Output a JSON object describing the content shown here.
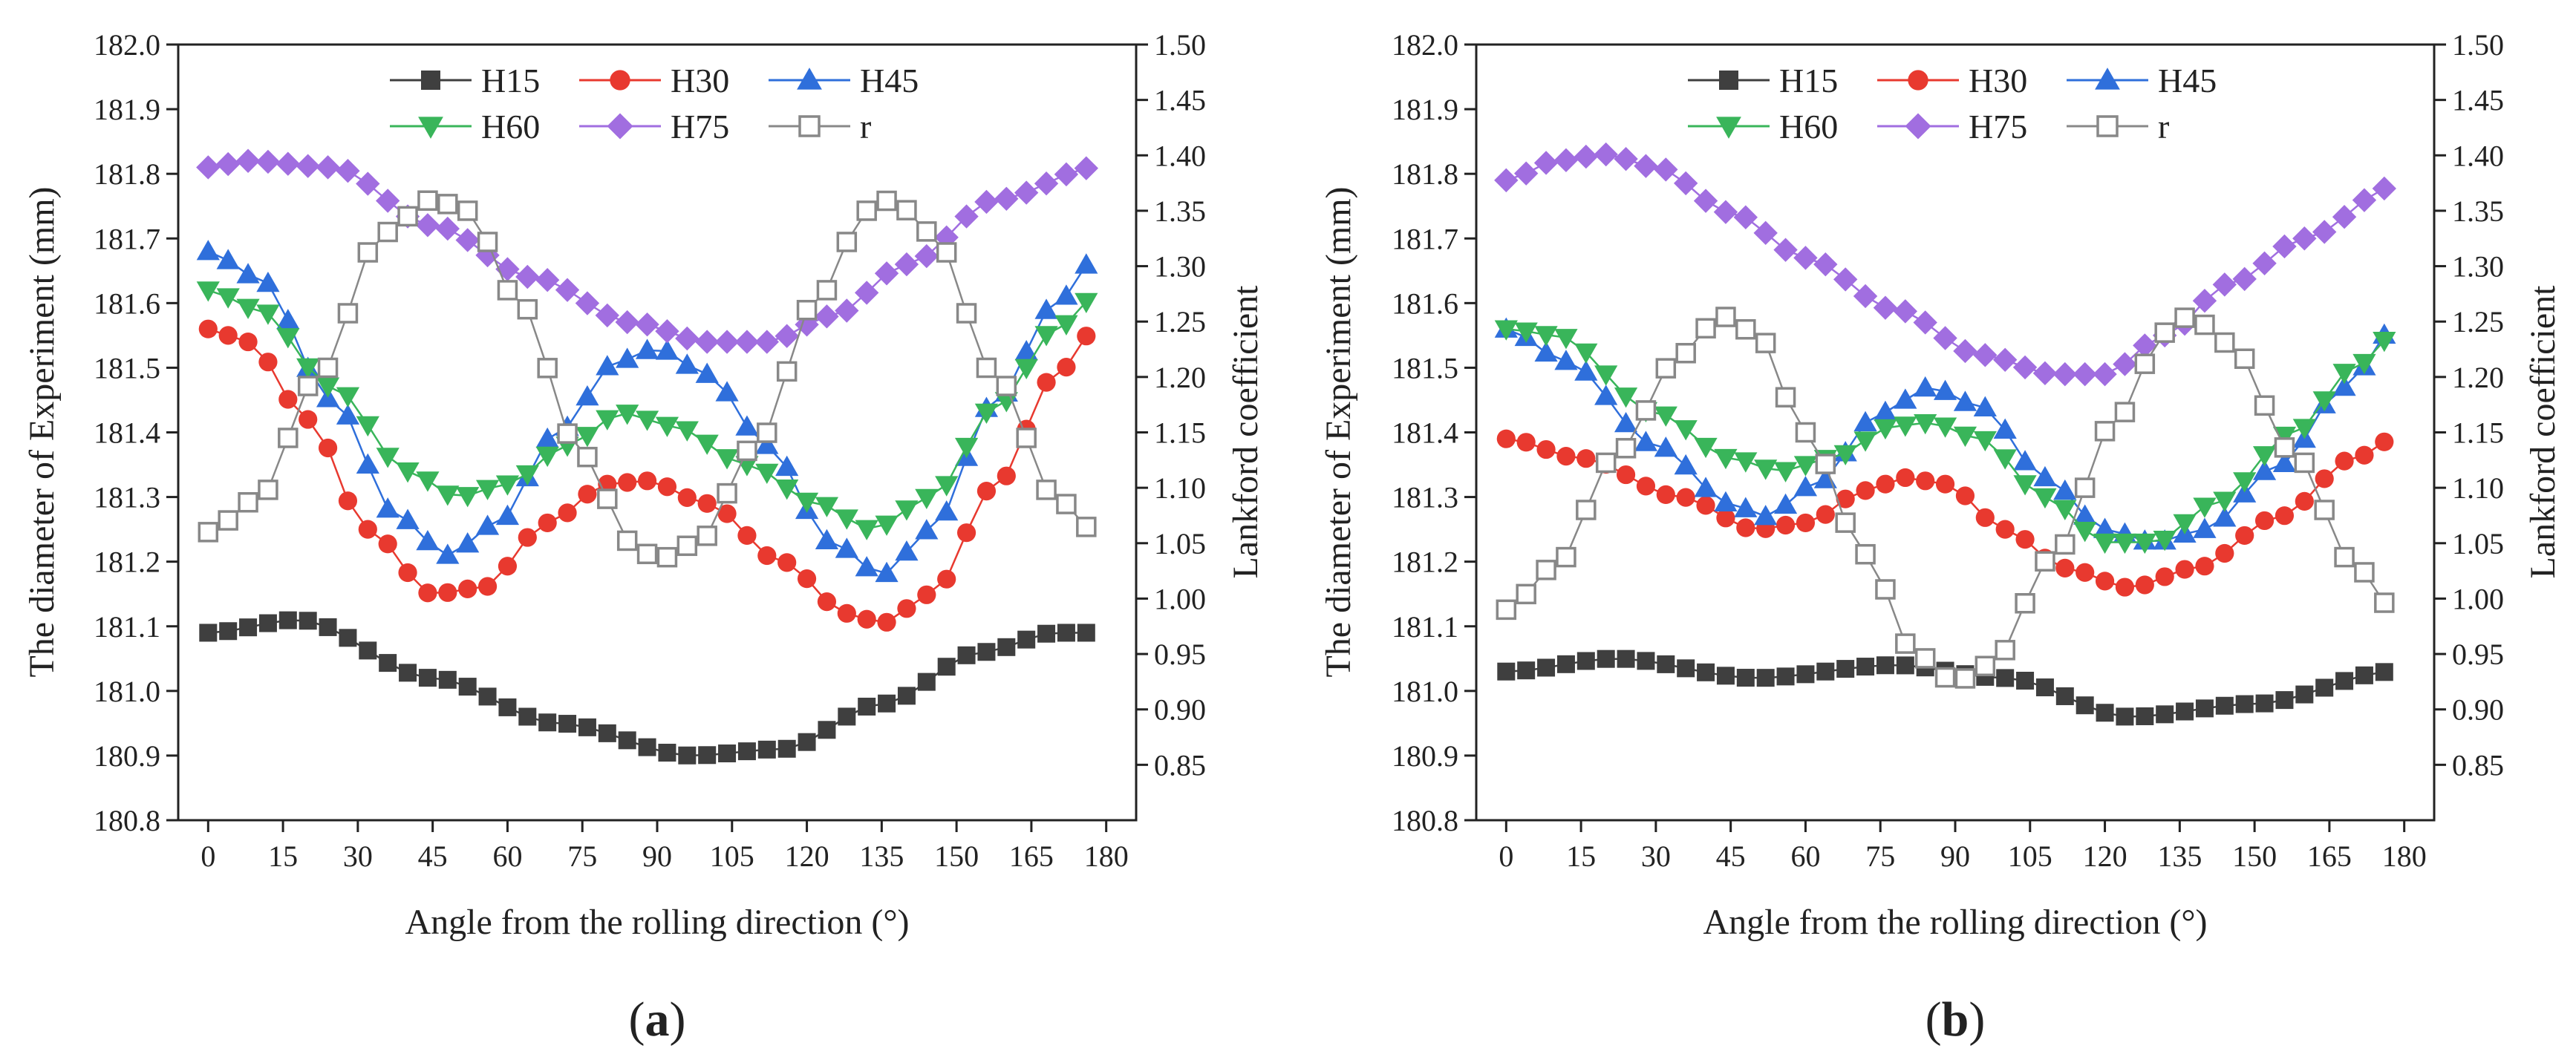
{
  "panels": [
    {
      "panel_label": "a",
      "chart_data": {
        "type": "scatter",
        "title": "",
        "xlabel": "Angle from the rolling direction (°)",
        "ylabel": "The diameter of Experiment (mm)",
        "y2label": "Lankford coefficient",
        "xlim": [
          -6,
          186
        ],
        "ylim": [
          180.8,
          182.0
        ],
        "y2lim": [
          0.8,
          1.5
        ],
        "xticks": [
          "0",
          "15",
          "30",
          "45",
          "60",
          "75",
          "90",
          "105",
          "120",
          "135",
          "150",
          "165",
          "180"
        ],
        "yticks": [
          "180.8",
          "180.9",
          "181.0",
          "181.1",
          "181.2",
          "181.3",
          "181.4",
          "181.5",
          "181.6",
          "181.7",
          "181.8",
          "181.9",
          "182.0"
        ],
        "y2ticks": [
          "0.85",
          "0.90",
          "0.95",
          "1.00",
          "1.05",
          "1.10",
          "1.15",
          "1.20",
          "1.25",
          "1.30",
          "1.35",
          "1.40",
          "1.45",
          "1.50"
        ],
        "legend_position": "top-center",
        "x_step": 4,
        "series": [
          {
            "name": "H15",
            "axis": "left",
            "marker": "square",
            "color": "#3f3f3f",
            "filled": true,
            "keypoints": [
              [
                0,
                181.09
              ],
              [
                18,
                181.11
              ],
              [
                45,
                181.02
              ],
              [
                70,
                180.95
              ],
              [
                97,
                180.9
              ],
              [
                115,
                180.91
              ],
              [
                135,
                180.98
              ],
              [
                155,
                181.06
              ],
              [
                170,
                181.09
              ],
              [
                178,
                181.09
              ]
            ]
          },
          {
            "name": "H30",
            "axis": "left",
            "marker": "circle",
            "color": "#e8392f",
            "filled": true,
            "keypoints": [
              [
                0,
                181.56
              ],
              [
                8,
                181.54
              ],
              [
                20,
                181.42
              ],
              [
                32,
                181.25
              ],
              [
                45,
                181.15
              ],
              [
                55,
                181.16
              ],
              [
                68,
                181.26
              ],
              [
                80,
                181.32
              ],
              [
                88,
                181.325
              ],
              [
                100,
                181.29
              ],
              [
                115,
                181.2
              ],
              [
                128,
                181.12
              ],
              [
                135,
                181.105
              ],
              [
                145,
                181.15
              ],
              [
                158,
                181.32
              ],
              [
                170,
                181.49
              ],
              [
                178,
                181.56
              ]
            ]
          },
          {
            "name": "H45",
            "axis": "left",
            "marker": "triangle-up",
            "color": "#2f6fdb",
            "filled": true,
            "keypoints": [
              [
                0,
                181.68
              ],
              [
                10,
                181.64
              ],
              [
                25,
                181.45
              ],
              [
                38,
                181.27
              ],
              [
                48,
                181.21
              ],
              [
                58,
                181.26
              ],
              [
                70,
                181.4
              ],
              [
                82,
                181.51
              ],
              [
                90,
                181.53
              ],
              [
                100,
                181.49
              ],
              [
                112,
                181.38
              ],
              [
                125,
                181.23
              ],
              [
                135,
                181.18
              ],
              [
                145,
                181.25
              ],
              [
                158,
                181.45
              ],
              [
                170,
                181.6
              ],
              [
                178,
                181.67
              ]
            ]
          },
          {
            "name": "H60",
            "axis": "left",
            "marker": "triangle-down",
            "color": "#39b55a",
            "filled": true,
            "keypoints": [
              [
                0,
                181.62
              ],
              [
                10,
                181.59
              ],
              [
                25,
                181.47
              ],
              [
                40,
                181.34
              ],
              [
                50,
                181.3
              ],
              [
                60,
                181.32
              ],
              [
                72,
                181.38
              ],
              [
                83,
                181.43
              ],
              [
                93,
                181.41
              ],
              [
                108,
                181.35
              ],
              [
                122,
                181.29
              ],
              [
                133,
                181.25
              ],
              [
                145,
                181.3
              ],
              [
                158,
                181.44
              ],
              [
                170,
                181.56
              ],
              [
                178,
                181.61
              ]
            ]
          },
          {
            "name": "H75",
            "axis": "left",
            "marker": "diamond",
            "color": "#a16ee0",
            "filled": true,
            "keypoints": [
              [
                0,
                181.81
              ],
              [
                8,
                181.82
              ],
              [
                25,
                181.81
              ],
              [
                45,
                181.72
              ],
              [
                65,
                181.64
              ],
              [
                85,
                181.57
              ],
              [
                100,
                181.54
              ],
              [
                112,
                181.54
              ],
              [
                125,
                181.58
              ],
              [
                140,
                181.66
              ],
              [
                158,
                181.76
              ],
              [
                178,
                181.81
              ]
            ]
          },
          {
            "name": "r",
            "axis": "right",
            "marker": "open-square",
            "color": "#888888",
            "filled": false,
            "keypoints": [
              [
                0,
                1.06
              ],
              [
                10,
                1.09
              ],
              [
                22,
                1.2
              ],
              [
                35,
                1.33
              ],
              [
                45,
                1.36
              ],
              [
                52,
                1.35
              ],
              [
                62,
                1.27
              ],
              [
                75,
                1.13
              ],
              [
                85,
                1.05
              ],
              [
                90,
                1.035
              ],
              [
                98,
                1.05
              ],
              [
                110,
                1.14
              ],
              [
                122,
                1.27
              ],
              [
                132,
                1.35
              ],
              [
                137,
                1.36
              ],
              [
                145,
                1.33
              ],
              [
                158,
                1.2
              ],
              [
                170,
                1.09
              ],
              [
                178,
                1.06
              ]
            ]
          }
        ]
      }
    },
    {
      "panel_label": "b",
      "chart_data": {
        "type": "scatter",
        "title": "",
        "xlabel": "Angle from the rolling direction (°)",
        "ylabel": "The diameter of Experiment (mm)",
        "y2label": "Lankford coefficient",
        "xlim": [
          -6,
          186
        ],
        "ylim": [
          180.8,
          182.0
        ],
        "y2lim": [
          0.8,
          1.5
        ],
        "xticks": [
          "0",
          "15",
          "30",
          "45",
          "60",
          "75",
          "90",
          "105",
          "120",
          "135",
          "150",
          "165",
          "180"
        ],
        "yticks": [
          "180.8",
          "180.9",
          "181.0",
          "181.1",
          "181.2",
          "181.3",
          "181.4",
          "181.5",
          "181.6",
          "181.7",
          "181.8",
          "181.9",
          "182.0"
        ],
        "y2ticks": [
          "0.85",
          "0.90",
          "0.95",
          "1.00",
          "1.05",
          "1.10",
          "1.15",
          "1.20",
          "1.25",
          "1.30",
          "1.35",
          "1.40",
          "1.45",
          "1.50"
        ],
        "legend_position": "top-center",
        "x_step": 4,
        "series": [
          {
            "name": "H15",
            "axis": "left",
            "marker": "square",
            "color": "#3f3f3f",
            "filled": true,
            "keypoints": [
              [
                0,
                181.03
              ],
              [
                22,
                181.05
              ],
              [
                50,
                181.02
              ],
              [
                78,
                181.04
              ],
              [
                100,
                181.02
              ],
              [
                125,
                180.96
              ],
              [
                150,
                180.98
              ],
              [
                178,
                181.03
              ]
            ]
          },
          {
            "name": "H30",
            "axis": "left",
            "marker": "circle",
            "color": "#e8392f",
            "filled": true,
            "keypoints": [
              [
                0,
                181.39
              ],
              [
                15,
                181.36
              ],
              [
                35,
                181.3
              ],
              [
                50,
                181.25
              ],
              [
                60,
                181.26
              ],
              [
                72,
                181.31
              ],
              [
                80,
                181.33
              ],
              [
                88,
                181.32
              ],
              [
                100,
                181.25
              ],
              [
                112,
                181.19
              ],
              [
                125,
                181.16
              ],
              [
                138,
                181.19
              ],
              [
                155,
                181.27
              ],
              [
                170,
                181.36
              ],
              [
                178,
                181.39
              ]
            ]
          },
          {
            "name": "H45",
            "axis": "left",
            "marker": "triangle-up",
            "color": "#2f6fdb",
            "filled": true,
            "keypoints": [
              [
                0,
                181.56
              ],
              [
                12,
                181.51
              ],
              [
                30,
                181.38
              ],
              [
                45,
                181.29
              ],
              [
                52,
                181.27
              ],
              [
                62,
                181.32
              ],
              [
                75,
                181.43
              ],
              [
                85,
                181.47
              ],
              [
                95,
                181.44
              ],
              [
                108,
                181.33
              ],
              [
                120,
                181.25
              ],
              [
                130,
                181.23
              ],
              [
                140,
                181.25
              ],
              [
                155,
                181.35
              ],
              [
                168,
                181.47
              ],
              [
                178,
                181.56
              ]
            ]
          },
          {
            "name": "H60",
            "axis": "left",
            "marker": "triangle-down",
            "color": "#39b55a",
            "filled": true,
            "keypoints": [
              [
                0,
                181.56
              ],
              [
                10,
                181.55
              ],
              [
                30,
                181.43
              ],
              [
                45,
                181.36
              ],
              [
                55,
                181.34
              ],
              [
                65,
                181.36
              ],
              [
                78,
                181.41
              ],
              [
                85,
                181.415
              ],
              [
                95,
                181.39
              ],
              [
                108,
                181.3
              ],
              [
                120,
                181.23
              ],
              [
                130,
                181.23
              ],
              [
                142,
                181.29
              ],
              [
                158,
                181.4
              ],
              [
                170,
                181.5
              ],
              [
                178,
                181.55
              ]
            ]
          },
          {
            "name": "H75",
            "axis": "left",
            "marker": "diamond",
            "color": "#a16ee0",
            "filled": true,
            "keypoints": [
              [
                0,
                181.79
              ],
              [
                10,
                181.82
              ],
              [
                20,
                181.83
              ],
              [
                30,
                181.81
              ],
              [
                45,
                181.74
              ],
              [
                60,
                181.67
              ],
              [
                78,
                181.59
              ],
              [
                95,
                181.52
              ],
              [
                110,
                181.49
              ],
              [
                120,
                181.49
              ],
              [
                132,
                181.55
              ],
              [
                145,
                181.63
              ],
              [
                160,
                181.7
              ],
              [
                178,
                181.78
              ]
            ]
          },
          {
            "name": "r",
            "axis": "right",
            "marker": "open-square",
            "color": "#888888",
            "filled": false,
            "keypoints": [
              [
                0,
                0.99
              ],
              [
                10,
                1.03
              ],
              [
                22,
                1.13
              ],
              [
                35,
                1.22
              ],
              [
                43,
                1.255
              ],
              [
                50,
                1.24
              ],
              [
                60,
                1.15
              ],
              [
                72,
                1.04
              ],
              [
                82,
                0.95
              ],
              [
                90,
                0.925
              ],
              [
                97,
                0.94
              ],
              [
                110,
                1.04
              ],
              [
                122,
                1.16
              ],
              [
                132,
                1.24
              ],
              [
                137,
                1.255
              ],
              [
                145,
                1.23
              ],
              [
                158,
                1.13
              ],
              [
                170,
                1.03
              ],
              [
                178,
                0.99
              ]
            ]
          }
        ]
      }
    }
  ]
}
